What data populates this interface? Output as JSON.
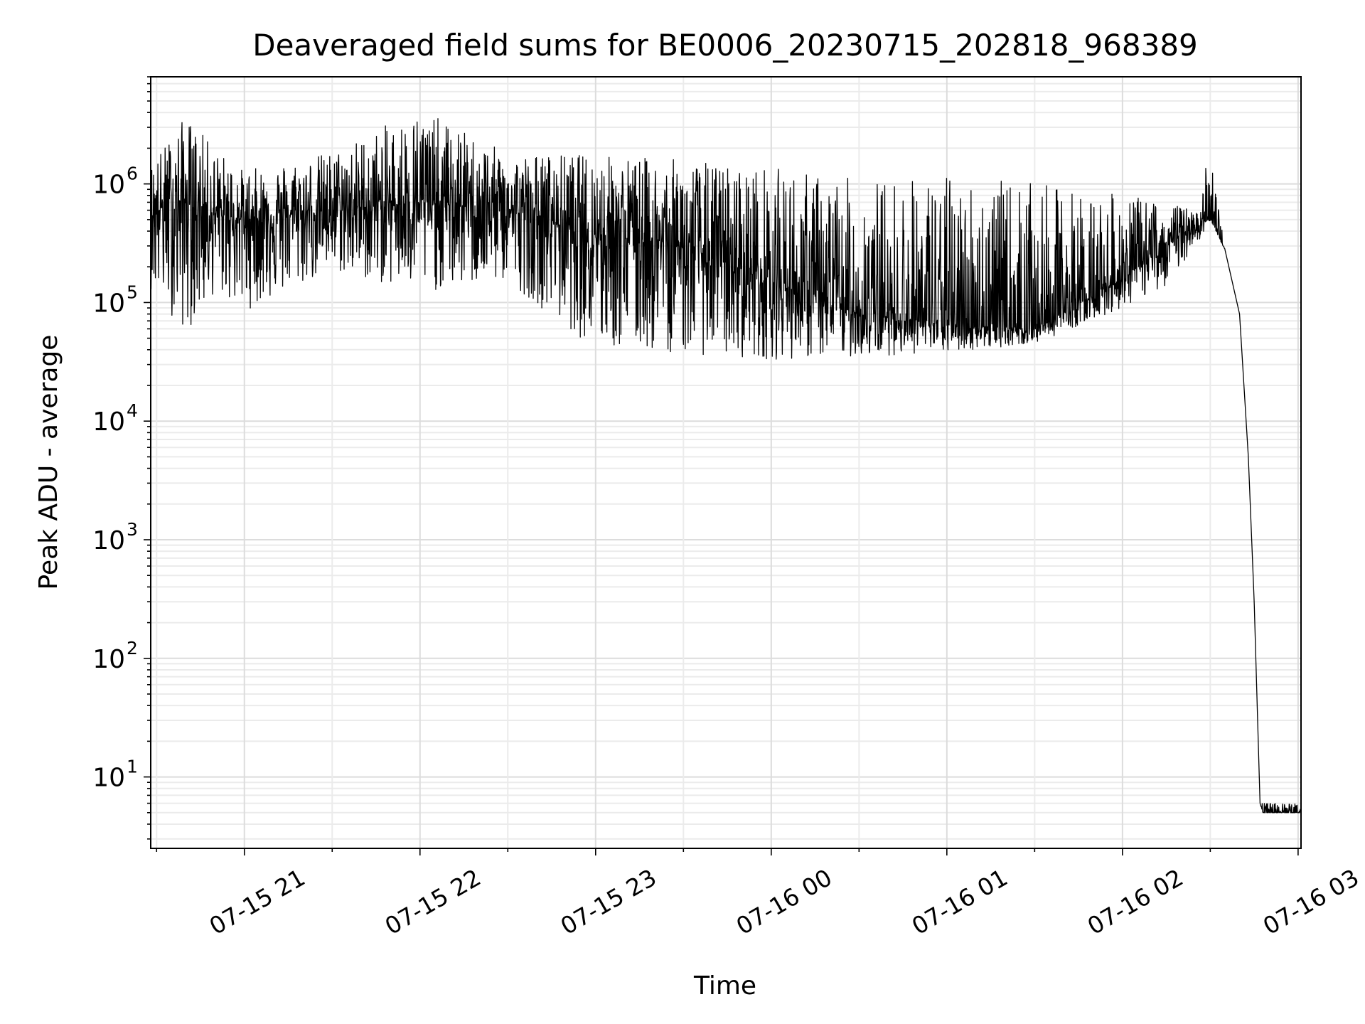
{
  "chart_data": {
    "type": "line",
    "title": "Deaveraged field sums for BE0006_20230715_202818_968389",
    "xlabel": "Time",
    "ylabel": "Peak ADU - average",
    "yscale": "log",
    "ylim": [
      2.5,
      8000000
    ],
    "xlim": [
      "07-15 20:28",
      "07-16 03:01"
    ],
    "grid": "major and minor, light gray",
    "line_color": "#000000",
    "x_ticks": [
      "07-15 21",
      "07-15 22",
      "07-15 23",
      "07-16 00",
      "07-16 01",
      "07-16 02",
      "07-16 03"
    ],
    "y_ticks": [
      {
        "base": "10",
        "exp": "1",
        "value": 10
      },
      {
        "base": "10",
        "exp": "2",
        "value": 100
      },
      {
        "base": "10",
        "exp": "3",
        "value": 1000
      },
      {
        "base": "10",
        "exp": "4",
        "value": 10000
      },
      {
        "base": "10",
        "exp": "5",
        "value": 100000
      },
      {
        "base": "10",
        "exp": "6",
        "value": 1000000
      }
    ],
    "series": [
      {
        "x": [
          "07-15 20:28",
          "07-15 20:40",
          "07-15 20:50",
          "07-15 21:00",
          "07-15 21:30",
          "07-15 22:00",
          "07-15 22:30",
          "07-15 23:00",
          "07-15 23:30",
          "07-16 00:00",
          "07-16 00:30",
          "07-16 01:00",
          "07-16 01:30",
          "07-16 02:00",
          "07-16 02:15",
          "07-16 02:25",
          "07-16 02:30",
          "07-16 02:35",
          "07-16 02:40",
          "07-16 02:43",
          "07-16 02:45",
          "07-16 02:47",
          "07-16 02:48",
          "07-16 03:01"
        ],
        "median_y": [
          600000,
          700000,
          550000,
          500000,
          600000,
          700000,
          600000,
          400000,
          300000,
          150000,
          80000,
          65000,
          60000,
          160000,
          300000,
          450000,
          520000,
          280000,
          80000,
          5000,
          300,
          6,
          5,
          5
        ],
        "min_y": [
          130000,
          55000,
          120000,
          85000,
          180000,
          120000,
          150000,
          40000,
          37000,
          33000,
          35000,
          38000,
          45000,
          90000,
          140000,
          300000,
          480000,
          280000,
          80000,
          5000,
          300,
          6,
          5,
          5
        ],
        "max_y": [
          1500000,
          3800000,
          2000000,
          1300000,
          1900000,
          4300000,
          1800000,
          1800000,
          1600000,
          1400000,
          1100000,
          1200000,
          1000000,
          800000,
          700000,
          600000,
          2000000,
          280000,
          80000,
          5000,
          300,
          6,
          6,
          6
        ]
      }
    ]
  }
}
